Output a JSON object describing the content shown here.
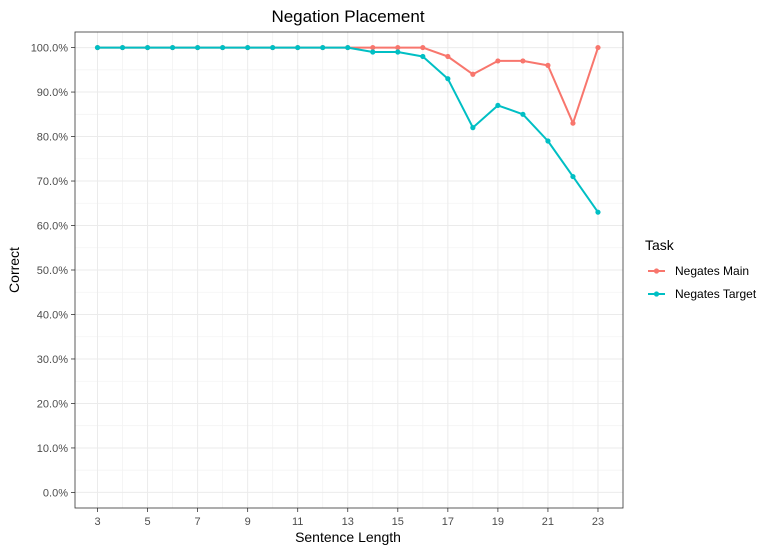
{
  "chart_data": {
    "type": "line",
    "title": "Negation Placement",
    "xlabel": "Sentence Length",
    "ylabel": "Correct",
    "x": [
      3,
      4,
      5,
      6,
      7,
      8,
      9,
      10,
      11,
      12,
      13,
      14,
      15,
      16,
      17,
      18,
      19,
      20,
      21,
      22,
      23
    ],
    "x_ticks": [
      3,
      5,
      7,
      9,
      11,
      13,
      15,
      17,
      19,
      21,
      23
    ],
    "y_ticks": [
      "0.0%",
      "10.0%",
      "20.0%",
      "30.0%",
      "40.0%",
      "50.0%",
      "60.0%",
      "70.0%",
      "80.0%",
      "90.0%",
      "100.0%"
    ],
    "xlim": [
      2.1,
      24.0
    ],
    "ylim": [
      -0.035,
      1.035
    ],
    "grid": true,
    "legend": {
      "title": "Task",
      "position": "right"
    },
    "series": [
      {
        "name": "Negates Main",
        "color": "#f8766d",
        "values": [
          1.0,
          1.0,
          1.0,
          1.0,
          1.0,
          1.0,
          1.0,
          1.0,
          1.0,
          1.0,
          1.0,
          1.0,
          1.0,
          1.0,
          0.98,
          0.94,
          0.97,
          0.97,
          0.96,
          0.83,
          1.0
        ]
      },
      {
        "name": "Negates Target",
        "color": "#00bfc4",
        "values": [
          1.0,
          1.0,
          1.0,
          1.0,
          1.0,
          1.0,
          1.0,
          1.0,
          1.0,
          1.0,
          1.0,
          0.99,
          0.99,
          0.98,
          0.93,
          0.82,
          0.87,
          0.85,
          0.79,
          0.71,
          0.63
        ]
      }
    ]
  }
}
